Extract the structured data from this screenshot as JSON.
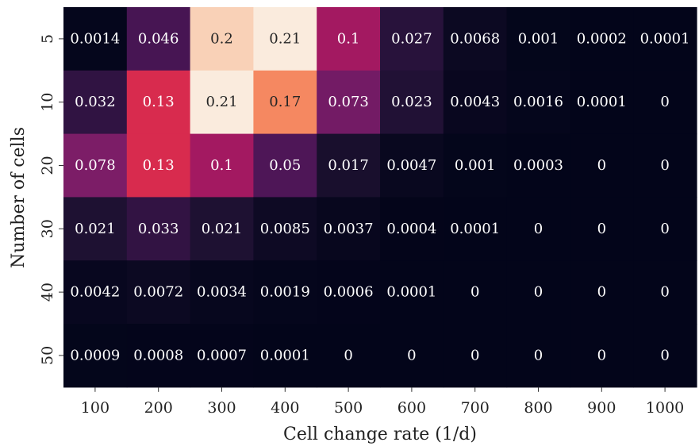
{
  "chart_data": {
    "type": "heatmap",
    "xlabel": "Cell change rate (1/d)",
    "ylabel": "Number of cells",
    "x_categories": [
      "100",
      "200",
      "300",
      "400",
      "500",
      "600",
      "700",
      "800",
      "900",
      "1000"
    ],
    "y_categories": [
      "5",
      "10",
      "20",
      "30",
      "40",
      "50"
    ],
    "values": [
      [
        0.0014,
        0.046,
        0.2,
        0.21,
        0.1,
        0.027,
        0.0068,
        0.001,
        0.0002,
        0.0001
      ],
      [
        0.032,
        0.13,
        0.21,
        0.17,
        0.073,
        0.023,
        0.0043,
        0.0016,
        0.0001,
        0
      ],
      [
        0.078,
        0.13,
        0.1,
        0.05,
        0.017,
        0.0047,
        0.001,
        0.0003,
        0,
        0
      ],
      [
        0.021,
        0.033,
        0.021,
        0.0085,
        0.0037,
        0.0004,
        0.0001,
        0,
        0,
        0
      ],
      [
        0.0042,
        0.0072,
        0.0034,
        0.0019,
        0.0006,
        0.0001,
        0,
        0,
        0,
        0
      ],
      [
        0.0009,
        0.0008,
        0.0007,
        0.0001,
        0,
        0,
        0,
        0,
        0,
        0
      ]
    ],
    "colormap": "rocket",
    "colorbar": false,
    "annotations": true
  }
}
